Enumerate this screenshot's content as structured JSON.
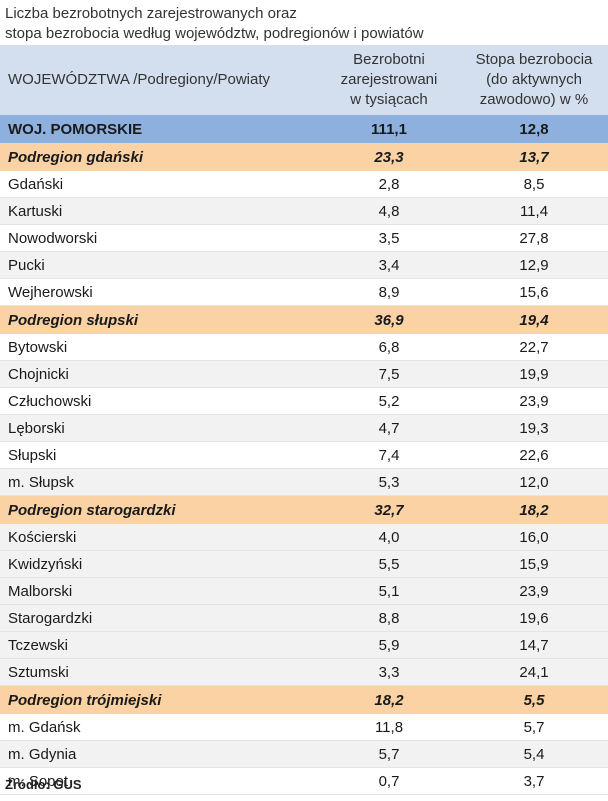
{
  "title_line1": "Liczba bezrobotnych zarejestrowanych oraz",
  "title_line2": "stopa bezrobocia według województw, podregionów  i  powiatów",
  "header": {
    "col1": "WOJEWÓDZTWA /Podregiony/Powiaty",
    "col2_line1": "Bezrobotni",
    "col2_line2": "zarejestrowani",
    "col2_line3": "w tysiącach",
    "col3_line1": "Stopa bezrobocia",
    "col3_line2": "(do aktywnych",
    "col3_line3": "zawodowo) w %"
  },
  "rows": [
    {
      "type": "voiv",
      "name": "WOJ. POMORSKIE",
      "unemployed": "111,1",
      "rate": "12,8"
    },
    {
      "type": "sub",
      "name": "Podregion gdański",
      "unemployed": "23,3",
      "rate": "13,7"
    },
    {
      "type": "row",
      "name": "Gdański",
      "unemployed": "2,8",
      "rate": "8,5"
    },
    {
      "type": "row",
      "name": "Kartuski",
      "unemployed": "4,8",
      "rate": "11,4"
    },
    {
      "type": "row",
      "name": "Nowodworski",
      "unemployed": "3,5",
      "rate": "27,8"
    },
    {
      "type": "row",
      "name": "Pucki",
      "unemployed": "3,4",
      "rate": "12,9"
    },
    {
      "type": "row",
      "name": "Wejherowski",
      "unemployed": "8,9",
      "rate": "15,6"
    },
    {
      "type": "sub",
      "name": "Podregion słupski",
      "unemployed": "36,9",
      "rate": "19,4"
    },
    {
      "type": "row",
      "name": "Bytowski",
      "unemployed": "6,8",
      "rate": "22,7"
    },
    {
      "type": "row",
      "name": "Chojnicki",
      "unemployed": "7,5",
      "rate": "19,9"
    },
    {
      "type": "row",
      "name": "Człuchowski",
      "unemployed": "5,2",
      "rate": "23,9"
    },
    {
      "type": "row",
      "name": "Lęborski",
      "unemployed": "4,7",
      "rate": "19,3"
    },
    {
      "type": "row",
      "name": "Słupski",
      "unemployed": "7,4",
      "rate": "22,6"
    },
    {
      "type": "row",
      "name": "m. Słupsk",
      "unemployed": "5,3",
      "rate": "12,0"
    },
    {
      "type": "sub",
      "name": "Podregion starogardzki",
      "unemployed": "32,7",
      "rate": "18,2"
    },
    {
      "type": "row",
      "name": "Kościerski",
      "unemployed": "4,0",
      "rate": "16,0"
    },
    {
      "type": "row",
      "name": "Kwidzyński",
      "unemployed": "5,5",
      "rate": "15,9"
    },
    {
      "type": "row",
      "name": "Malborski",
      "unemployed": "5,1",
      "rate": "23,9"
    },
    {
      "type": "row",
      "name": "Starogardzki",
      "unemployed": "8,8",
      "rate": "19,6"
    },
    {
      "type": "row",
      "name": "Tczewski",
      "unemployed": "5,9",
      "rate": "14,7"
    },
    {
      "type": "row",
      "name": "Sztumski",
      "unemployed": "3,3",
      "rate": "24,1"
    },
    {
      "type": "sub",
      "name": "Podregion trójmiejski",
      "unemployed": "18,2",
      "rate": "5,5"
    },
    {
      "type": "row",
      "name": "m. Gdańsk",
      "unemployed": "11,8",
      "rate": "5,7"
    },
    {
      "type": "row",
      "name": "m. Gdynia",
      "unemployed": "5,7",
      "rate": "5,4"
    },
    {
      "type": "row",
      "name": "m. Sopot",
      "unemployed": "0,7",
      "rate": "3,7"
    }
  ],
  "source": "Źródło: GUS",
  "colors": {
    "header_bg": "#d3dfee",
    "voivodeship_bg": "#8eb0df",
    "subregion_bg": "#fbd2a4",
    "stripe_bg": "#f2f2f2"
  }
}
